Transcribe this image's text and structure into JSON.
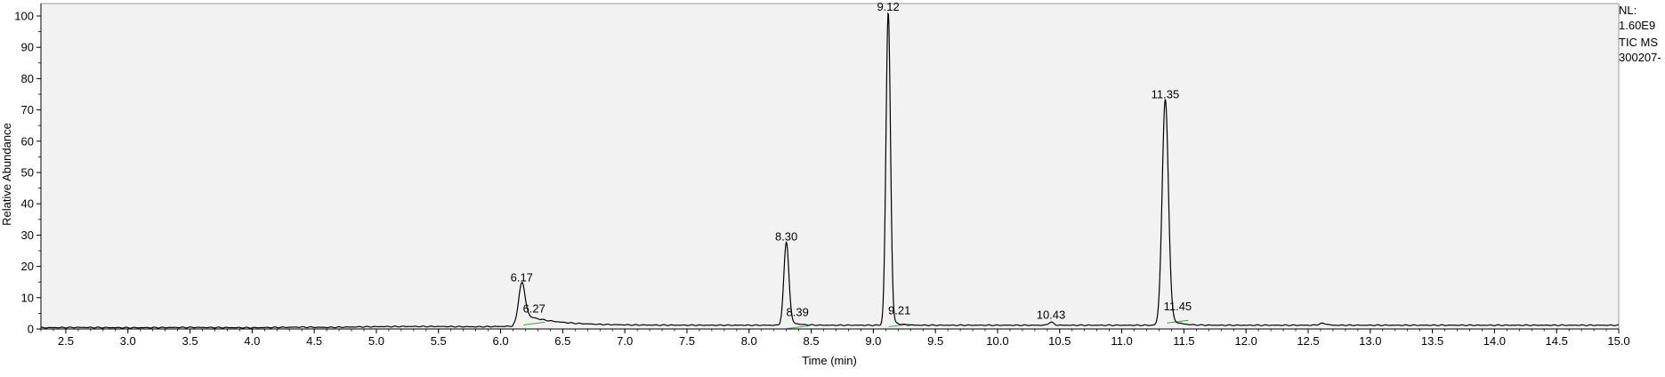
{
  "side_info": {
    "nl_label": "NL:",
    "nl_value": "1.60E9",
    "scan_label": "TIC  MS",
    "file_label": "300207-"
  },
  "chart_data": {
    "type": "line",
    "title": "",
    "xlabel": "Time (min)",
    "ylabel": "Relative Abundance",
    "xlim": [
      2.3,
      15.0
    ],
    "ylim": [
      0,
      102
    ],
    "x_ticks": [
      "2.5",
      "3.0",
      "3.5",
      "4.0",
      "4.5",
      "5.0",
      "5.5",
      "6.0",
      "6.5",
      "7.0",
      "7.5",
      "8.0",
      "8.5",
      "9.0",
      "9.5",
      "10.0",
      "10.5",
      "11.0",
      "11.5",
      "12.0",
      "12.5",
      "13.0",
      "13.5",
      "14.0",
      "14.5",
      "15.0"
    ],
    "y_ticks": [
      "0",
      "10",
      "20",
      "30",
      "40",
      "50",
      "60",
      "70",
      "80",
      "90",
      "100"
    ],
    "grid": false,
    "baseline": {
      "x": [
        2.3,
        2.6,
        3.0,
        3.5,
        4.0,
        4.4,
        4.6,
        4.9,
        5.2,
        5.5,
        5.8,
        6.0,
        6.1
      ],
      "y": [
        0.4,
        0.5,
        0.4,
        0.5,
        0.4,
        0.6,
        0.5,
        0.7,
        0.8,
        0.8,
        0.7,
        0.8,
        0.9
      ]
    },
    "peaks": [
      {
        "rt": 6.17,
        "height": 13.5,
        "width": 0.025,
        "tail": 3.5,
        "decay": 0.25
      },
      {
        "rt": 8.3,
        "height": 26.5,
        "width": 0.02,
        "tail": 2.0,
        "decay": 0.06
      },
      {
        "rt": 9.12,
        "height": 100,
        "width": 0.018,
        "tail": 2.5,
        "decay": 0.05
      },
      {
        "rt": 10.43,
        "height": 1.0,
        "width": 0.02,
        "tail": 0.0,
        "decay": 0.1
      },
      {
        "rt": 11.35,
        "height": 72,
        "width": 0.025,
        "tail": 3.5,
        "decay": 0.07
      },
      {
        "rt": 12.62,
        "height": 0.6,
        "width": 0.03,
        "tail": 0.0,
        "decay": 0.1
      }
    ],
    "late_baseline": 1.2,
    "peak_labels": [
      {
        "text": "6.17",
        "x": 6.17,
        "y": 13.5
      },
      {
        "text": "6.27",
        "x": 6.27,
        "y": 3.6
      },
      {
        "text": "8.30",
        "x": 8.3,
        "y": 26.5
      },
      {
        "text": "8.39",
        "x": 8.39,
        "y": 2.4
      },
      {
        "text": "9.12",
        "x": 9.12,
        "y": 100
      },
      {
        "text": "9.21",
        "x": 9.21,
        "y": 3.0
      },
      {
        "text": "10.43",
        "x": 10.43,
        "y": 1.5
      },
      {
        "text": "11.35",
        "x": 11.35,
        "y": 72
      },
      {
        "text": "11.45",
        "x": 11.45,
        "y": 4.2
      }
    ],
    "colors": {
      "trace": "#000000",
      "plot_bg": "#f2f2f2",
      "integration": "#3aa83a"
    }
  }
}
